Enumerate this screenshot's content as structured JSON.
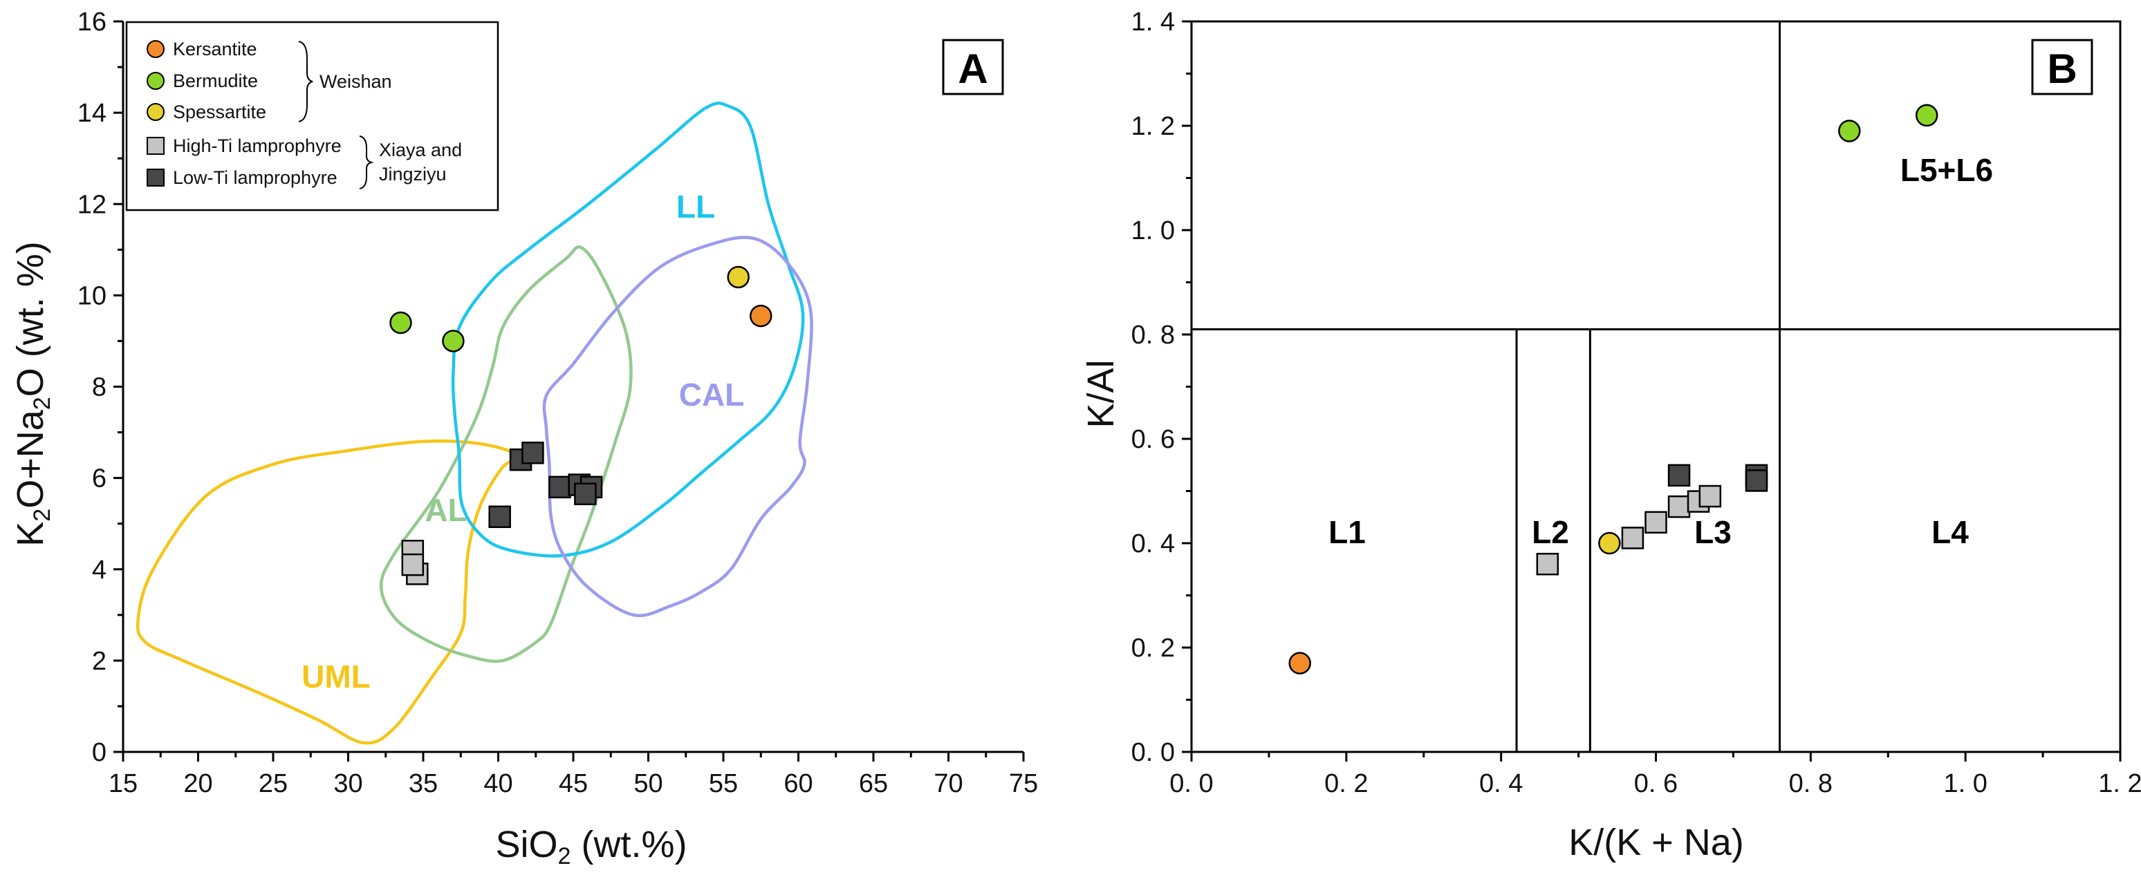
{
  "chart_data": [
    {
      "type": "scatter",
      "panel": "A",
      "xlabel": "SiO2 (wt.%)",
      "ylabel": "K2O+Na2O (wt.%)",
      "xlim": [
        15,
        75
      ],
      "ylim": [
        0,
        16
      ],
      "x_ticks": [
        15,
        20,
        25,
        30,
        35,
        40,
        45,
        50,
        55,
        60,
        65,
        70,
        75
      ],
      "y_ticks": [
        0,
        2,
        4,
        6,
        8,
        10,
        12,
        14,
        16
      ],
      "fields": [
        {
          "name": "UML",
          "color": "#f5c518"
        },
        {
          "name": "AL",
          "color": "#93c98f"
        },
        {
          "name": "LL",
          "color": "#1cc6ee"
        },
        {
          "name": "CAL",
          "color": "#9b9bf0"
        }
      ],
      "series": [
        {
          "name": "Kersantite",
          "marker": "circle",
          "color": "#f28c2b",
          "points": [
            [
              57.5,
              9.55
            ]
          ]
        },
        {
          "name": "Bermudite",
          "marker": "circle",
          "color": "#8cd62a",
          "points": [
            [
              33.5,
              9.4
            ],
            [
              37,
              9.0
            ]
          ]
        },
        {
          "name": "Spessartite",
          "marker": "circle",
          "color": "#e8d02e",
          "points": [
            [
              56,
              10.4
            ]
          ]
        },
        {
          "name": "High-Ti lamprophyre",
          "marker": "square",
          "color": "#c4c4c4",
          "points": [
            [
              34.3,
              4.4
            ],
            [
              34.6,
              3.9
            ],
            [
              34.3,
              4.1
            ]
          ]
        },
        {
          "name": "Low-Ti lamprophyre",
          "marker": "square",
          "color": "#474747",
          "points": [
            [
              41.5,
              6.4
            ],
            [
              42.3,
              6.55
            ],
            [
              40.1,
              5.15
            ],
            [
              44.1,
              5.8
            ],
            [
              45.4,
              5.85
            ],
            [
              46.2,
              5.8
            ],
            [
              45.8,
              5.65
            ]
          ]
        }
      ],
      "legend": {
        "items": [
          "Kersantite",
          "Bermudite",
          "Spessartite",
          "High-Ti lamprophyre",
          "Low-Ti lamprophyre"
        ],
        "group1": "Weishan",
        "group2_line1": "Xiaya and",
        "group2_line2": "Jingziyu",
        "placement": "top-left"
      }
    },
    {
      "type": "scatter",
      "panel": "B",
      "xlabel": "K/(K + Na)",
      "ylabel": "K/Al",
      "xlim": [
        0,
        1.2
      ],
      "ylim": [
        0,
        1.4
      ],
      "x_ticks": [
        "0. 0",
        "0. 2",
        "0. 4",
        "0. 6",
        "0. 8",
        "1. 0",
        "1. 2"
      ],
      "y_ticks": [
        "0. 0",
        "0. 2",
        "0. 4",
        "0. 6",
        "0. 8",
        "1. 0",
        "1. 2",
        "1. 4"
      ],
      "x_tick_values": [
        0,
        0.2,
        0.4,
        0.6,
        0.8,
        1.0,
        1.2
      ],
      "y_tick_values": [
        0,
        0.2,
        0.4,
        0.6,
        0.8,
        1.0,
        1.2,
        1.4
      ],
      "boundaries": {
        "horizontal_y": 0.81,
        "lower_x": [
          0.42,
          0.515
        ],
        "full_x": 0.76
      },
      "regions": [
        "L1",
        "L2",
        "L3",
        "L4",
        "L5+L6"
      ],
      "series": [
        {
          "name": "Kersantite",
          "marker": "circle",
          "color": "#f28c2b",
          "points": [
            [
              0.14,
              0.17
            ]
          ]
        },
        {
          "name": "Bermudite",
          "marker": "circle",
          "color": "#8cd62a",
          "points": [
            [
              0.85,
              1.19
            ],
            [
              0.95,
              1.22
            ]
          ]
        },
        {
          "name": "Spessartite",
          "marker": "circle",
          "color": "#e8d02e",
          "points": [
            [
              0.54,
              0.4
            ]
          ]
        },
        {
          "name": "High-Ti lamprophyre",
          "marker": "square",
          "color": "#c4c4c4",
          "points": [
            [
              0.46,
              0.36
            ],
            [
              0.57,
              0.41
            ],
            [
              0.6,
              0.44
            ],
            [
              0.63,
              0.47
            ],
            [
              0.655,
              0.48
            ],
            [
              0.67,
              0.49
            ]
          ]
        },
        {
          "name": "Low-Ti lamprophyre",
          "marker": "square",
          "color": "#474747",
          "points": [
            [
              0.63,
              0.53
            ],
            [
              0.73,
              0.53
            ],
            [
              0.73,
              0.52
            ]
          ]
        }
      ]
    }
  ]
}
